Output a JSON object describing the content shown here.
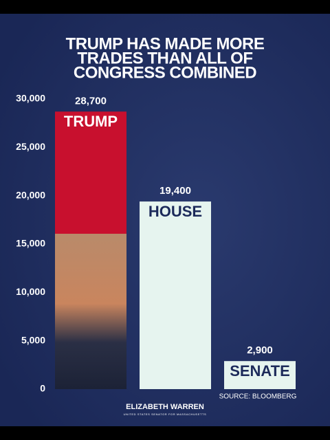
{
  "chart_data": {
    "type": "bar",
    "title_lines": [
      "TRUMP HAS MADE MORE",
      "TRADES THAN ALL OF",
      "CONGRESS COMBINED"
    ],
    "categories": [
      "TRUMP",
      "HOUSE",
      "SENATE"
    ],
    "values": [
      28700,
      19400,
      2900
    ],
    "value_labels": [
      "28,700",
      "19,400",
      "2,900"
    ],
    "colors": [
      "#c8102e",
      "#e6f4ef",
      "#e6f4ef"
    ],
    "label_colors": [
      "#ffffff",
      "#1c2a5a",
      "#1c2a5a"
    ],
    "ylim": [
      0,
      30000
    ],
    "yticks": [
      0,
      {
        "value": 5000,
        "label": "5,000"
      },
      {
        "value": 10000,
        "label": "10,000"
      },
      {
        "value": 15000,
        "label": "15,000"
      },
      {
        "value": 20000,
        "label": "20,000"
      },
      {
        "value": 25000,
        "label": "25,000"
      },
      {
        "value": 30000,
        "label": "30,000"
      }
    ],
    "grid": false,
    "source": "SOURCE: BLOOMBERG",
    "footer": "ELIZABETH WARREN",
    "footer_subtitle": "UNITED STATES SENATOR FOR MASSACHUSETTS"
  }
}
